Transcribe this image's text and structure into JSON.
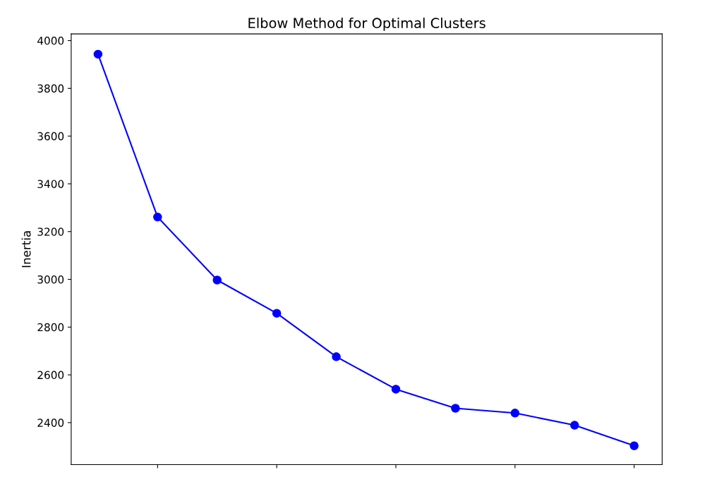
{
  "chart_data": {
    "type": "line",
    "title": "Elbow Method for Optimal Clusters",
    "ylabel": "Inertia",
    "categories": [
      null,
      null,
      null,
      null,
      null,
      null,
      null,
      null,
      null,
      null
    ],
    "series": [
      {
        "color": "#0000ff",
        "values": [
          3943,
          3261,
          2997,
          2858,
          2676,
          2540,
          2460,
          2440,
          2389,
          2303
        ]
      }
    ],
    "marker": "circle",
    "line_style": "solid",
    "ylim": [
      2224,
      4028
    ],
    "yticks": [
      2400,
      2600,
      2800,
      3000,
      3200,
      3400,
      3600,
      3800,
      4000
    ],
    "tick_labels": "y"
  }
}
